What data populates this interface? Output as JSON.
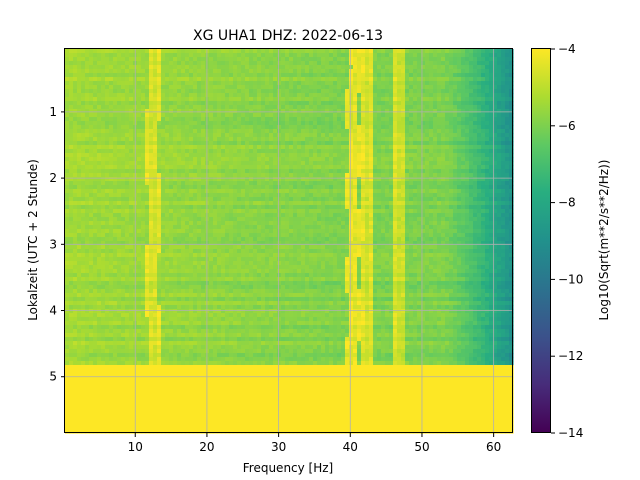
{
  "chart_data": {
    "type": "heatmap",
    "title": "XG UHA1  DHZ: 2022-06-13",
    "xlabel": "Frequency [Hz]",
    "ylabel": "Lokalzeit (UTC + 2 Stunde)",
    "colorbar_label": "Log10(Sqrt(m**2/s**2/Hz))",
    "xlim": [
      0.2,
      62.7
    ],
    "ylim": [
      5.85,
      0.05
    ],
    "x_ticks": [
      10,
      20,
      30,
      40,
      50,
      60
    ],
    "y_ticks": [
      1,
      2,
      3,
      4,
      5
    ],
    "colorbar_range": [
      -14,
      -4
    ],
    "colorbar_ticks": [
      -4,
      -6,
      -8,
      -10,
      -12,
      -14
    ],
    "colormap": "viridis",
    "grid": true,
    "data_end_hour": 4.83,
    "fill_value_after_data": -4.0,
    "background_level_low_freq": -5.4,
    "background_level_mid_freq": -6.0,
    "high_freq_rolloff": {
      "start_hz": 53,
      "end_hz": 62.7,
      "end_level": -9.0
    },
    "spectral_lines": [
      {
        "freq_hz": 12.5,
        "level": -4.8,
        "note": "wandering line near 11-13 Hz"
      },
      {
        "freq_hz": 40.5,
        "level": -4.6,
        "note": "wandering line near 40-42 Hz"
      },
      {
        "freq_hz": 42.3,
        "level": -4.8
      },
      {
        "freq_hz": 47.0,
        "level": -5.0
      }
    ]
  }
}
